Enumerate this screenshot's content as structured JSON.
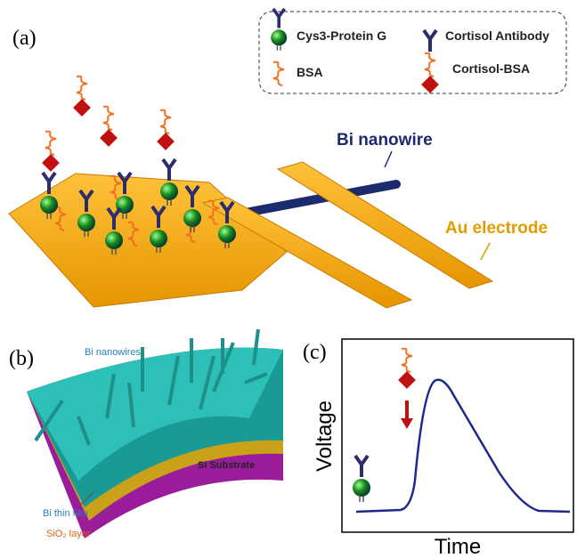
{
  "panels": {
    "a": {
      "label": "(a)",
      "legend": [
        {
          "label": "Cys3-Protein G"
        },
        {
          "label": "Cortisol Antibody"
        },
        {
          "label": "BSA"
        },
        {
          "label": "Cortisol-BSA"
        }
      ],
      "nanowire_label": "Bi nanowire",
      "electrode_label": "Au electrode"
    },
    "b": {
      "label": "(b)",
      "nanowires_label": "Bi nanowires",
      "substrate_label": "Si Substrate",
      "film_label": "Bi thin film",
      "oxide_label": "SiO₂ layer"
    },
    "c": {
      "label": "(c)",
      "y_axis_label": "Voltage",
      "x_axis_label": "Time"
    }
  }
}
